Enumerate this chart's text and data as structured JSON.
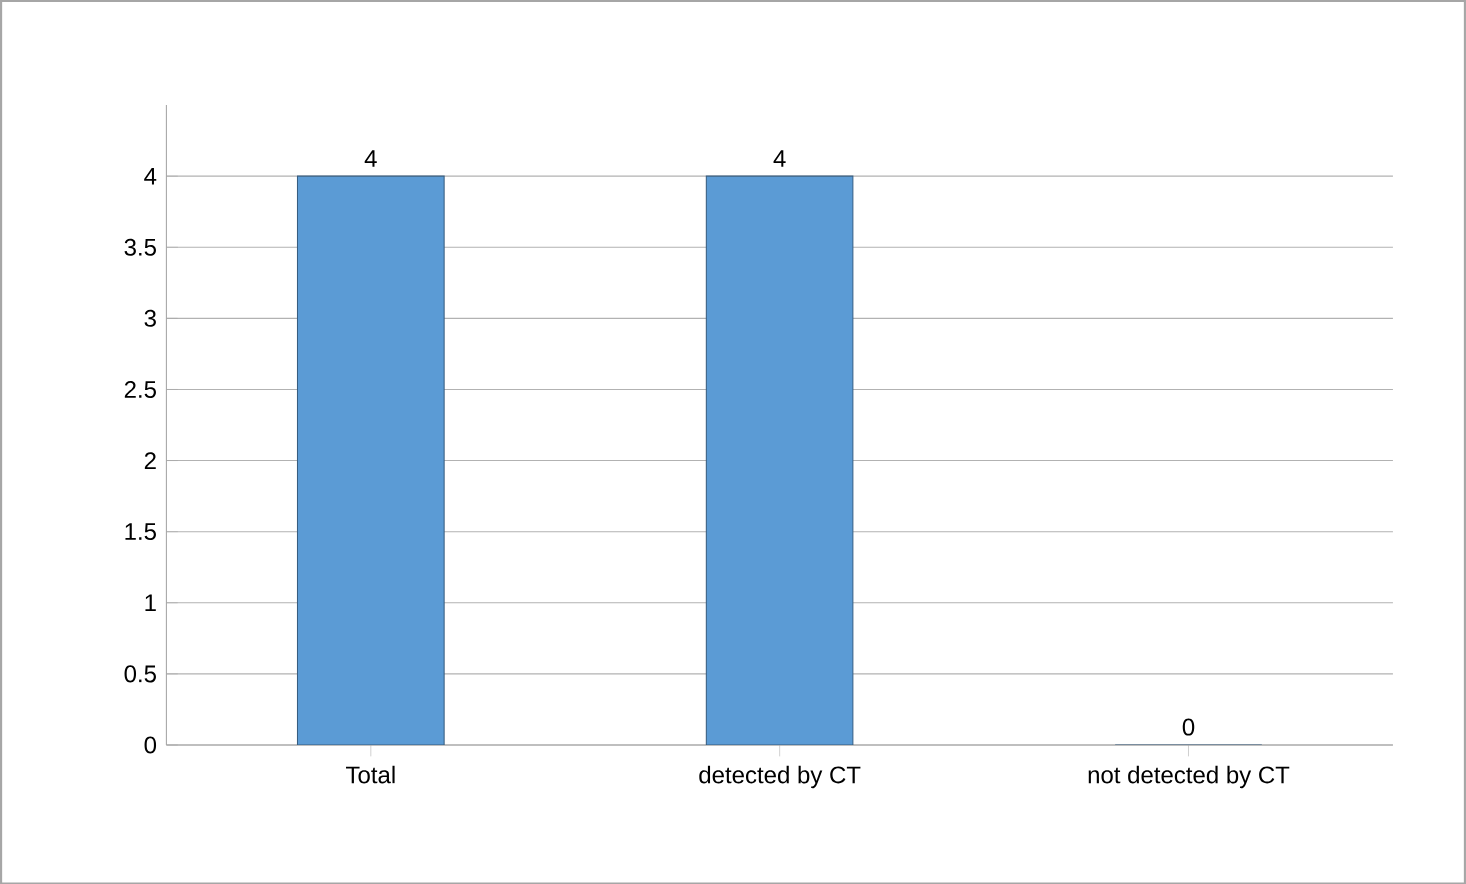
{
  "chart_data": {
    "type": "bar",
    "categories": [
      "Total",
      "detected by CT",
      "not detected by CT"
    ],
    "values": [
      4,
      4,
      0
    ],
    "color": "#5b9bd5",
    "ylim": [
      0,
      4.5
    ],
    "yticks": [
      0,
      0.5,
      1,
      1.5,
      2,
      2.5,
      3,
      3.5,
      4
    ],
    "grid": "y",
    "data_labels": true
  }
}
